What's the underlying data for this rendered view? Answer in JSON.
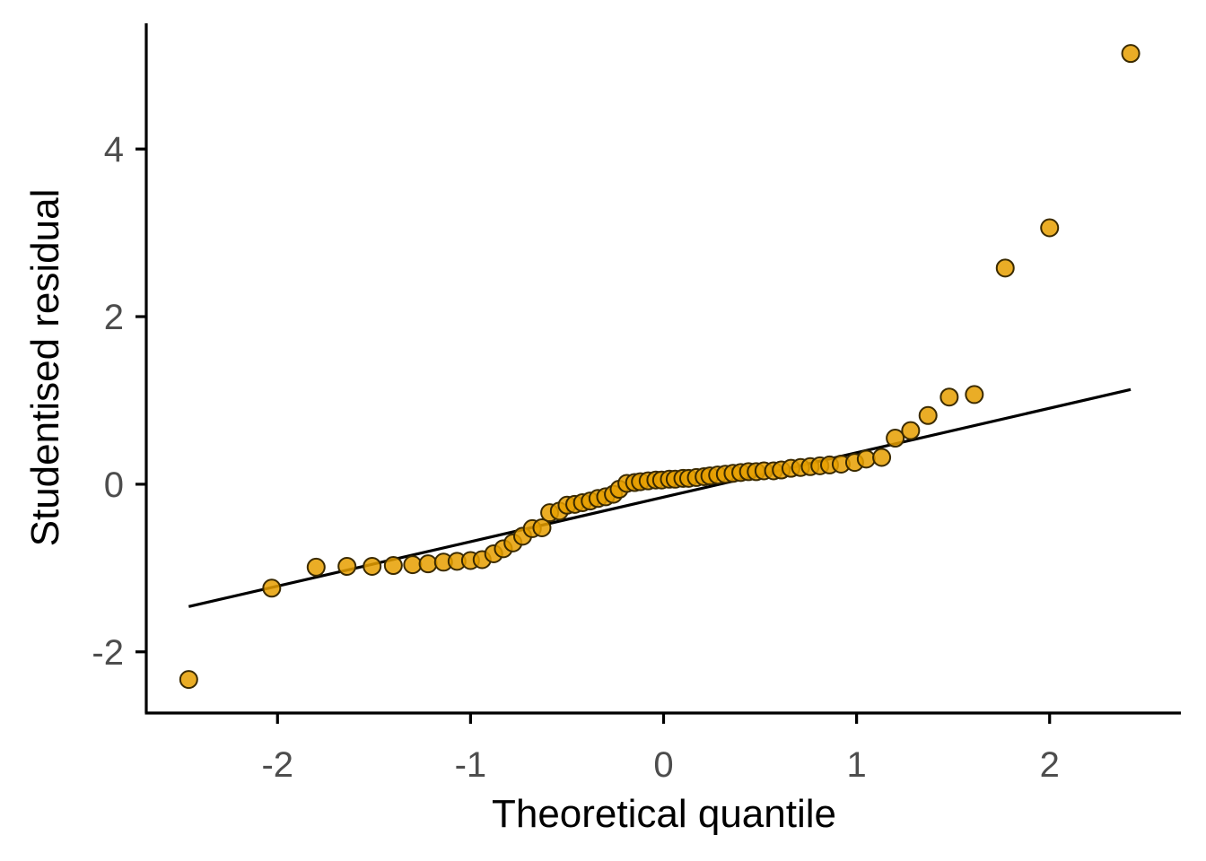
{
  "chart_data": {
    "type": "scatter",
    "title": "",
    "xlabel": "Theoretical quantile",
    "ylabel": "Studentised residual",
    "xlim": [
      -2.68,
      2.68
    ],
    "ylim": [
      -2.73,
      5.5
    ],
    "x_ticks": [
      -2,
      -1,
      0,
      1,
      2
    ],
    "x_tick_labels": [
      "-2",
      "-1",
      "0",
      "1",
      "2"
    ],
    "y_ticks": [
      -2,
      0,
      2,
      4
    ],
    "y_tick_labels": [
      "-2",
      "0",
      "2",
      "4"
    ],
    "grid": false,
    "point_color": "#E69F00",
    "point_edge_color": "#3a2a00",
    "reference_line": {
      "x": [
        -2.46,
        2.42
      ],
      "y": [
        -1.46,
        1.13
      ],
      "color": "#000000"
    },
    "points": [
      {
        "x": -2.46,
        "y": -2.33
      },
      {
        "x": -2.03,
        "y": -1.24
      },
      {
        "x": -1.8,
        "y": -0.99
      },
      {
        "x": -1.64,
        "y": -0.98
      },
      {
        "x": -1.51,
        "y": -0.98
      },
      {
        "x": -1.4,
        "y": -0.97
      },
      {
        "x": -1.3,
        "y": -0.96
      },
      {
        "x": -1.22,
        "y": -0.95
      },
      {
        "x": -1.14,
        "y": -0.93
      },
      {
        "x": -1.07,
        "y": -0.92
      },
      {
        "x": -1.0,
        "y": -0.91
      },
      {
        "x": -0.94,
        "y": -0.9
      },
      {
        "x": -0.88,
        "y": -0.83
      },
      {
        "x": -0.83,
        "y": -0.77
      },
      {
        "x": -0.78,
        "y": -0.7
      },
      {
        "x": -0.73,
        "y": -0.62
      },
      {
        "x": -0.68,
        "y": -0.53
      },
      {
        "x": -0.63,
        "y": -0.52
      },
      {
        "x": -0.59,
        "y": -0.34
      },
      {
        "x": -0.54,
        "y": -0.32
      },
      {
        "x": -0.5,
        "y": -0.25
      },
      {
        "x": -0.46,
        "y": -0.24
      },
      {
        "x": -0.42,
        "y": -0.22
      },
      {
        "x": -0.38,
        "y": -0.2
      },
      {
        "x": -0.34,
        "y": -0.17
      },
      {
        "x": -0.3,
        "y": -0.15
      },
      {
        "x": -0.26,
        "y": -0.12
      },
      {
        "x": -0.23,
        "y": -0.06
      },
      {
        "x": -0.19,
        "y": 0.01
      },
      {
        "x": -0.15,
        "y": 0.02
      },
      {
        "x": -0.12,
        "y": 0.03
      },
      {
        "x": -0.08,
        "y": 0.04
      },
      {
        "x": -0.04,
        "y": 0.05
      },
      {
        "x": -0.01,
        "y": 0.05
      },
      {
        "x": 0.03,
        "y": 0.06
      },
      {
        "x": 0.06,
        "y": 0.06
      },
      {
        "x": 0.1,
        "y": 0.07
      },
      {
        "x": 0.13,
        "y": 0.07
      },
      {
        "x": 0.17,
        "y": 0.08
      },
      {
        "x": 0.21,
        "y": 0.09
      },
      {
        "x": 0.24,
        "y": 0.1
      },
      {
        "x": 0.28,
        "y": 0.11
      },
      {
        "x": 0.32,
        "y": 0.12
      },
      {
        "x": 0.36,
        "y": 0.13
      },
      {
        "x": 0.4,
        "y": 0.14
      },
      {
        "x": 0.44,
        "y": 0.15
      },
      {
        "x": 0.48,
        "y": 0.15
      },
      {
        "x": 0.52,
        "y": 0.16
      },
      {
        "x": 0.57,
        "y": 0.16
      },
      {
        "x": 0.61,
        "y": 0.17
      },
      {
        "x": 0.66,
        "y": 0.19
      },
      {
        "x": 0.71,
        "y": 0.2
      },
      {
        "x": 0.76,
        "y": 0.21
      },
      {
        "x": 0.81,
        "y": 0.22
      },
      {
        "x": 0.86,
        "y": 0.23
      },
      {
        "x": 0.92,
        "y": 0.24
      },
      {
        "x": 0.99,
        "y": 0.26
      },
      {
        "x": 1.05,
        "y": 0.3
      },
      {
        "x": 1.13,
        "y": 0.32
      },
      {
        "x": 1.2,
        "y": 0.55
      },
      {
        "x": 1.28,
        "y": 0.64
      },
      {
        "x": 1.37,
        "y": 0.82
      },
      {
        "x": 1.48,
        "y": 1.04
      },
      {
        "x": 1.61,
        "y": 1.07
      },
      {
        "x": 1.77,
        "y": 2.58
      },
      {
        "x": 2.0,
        "y": 3.06
      },
      {
        "x": 2.42,
        "y": 5.14
      }
    ]
  }
}
